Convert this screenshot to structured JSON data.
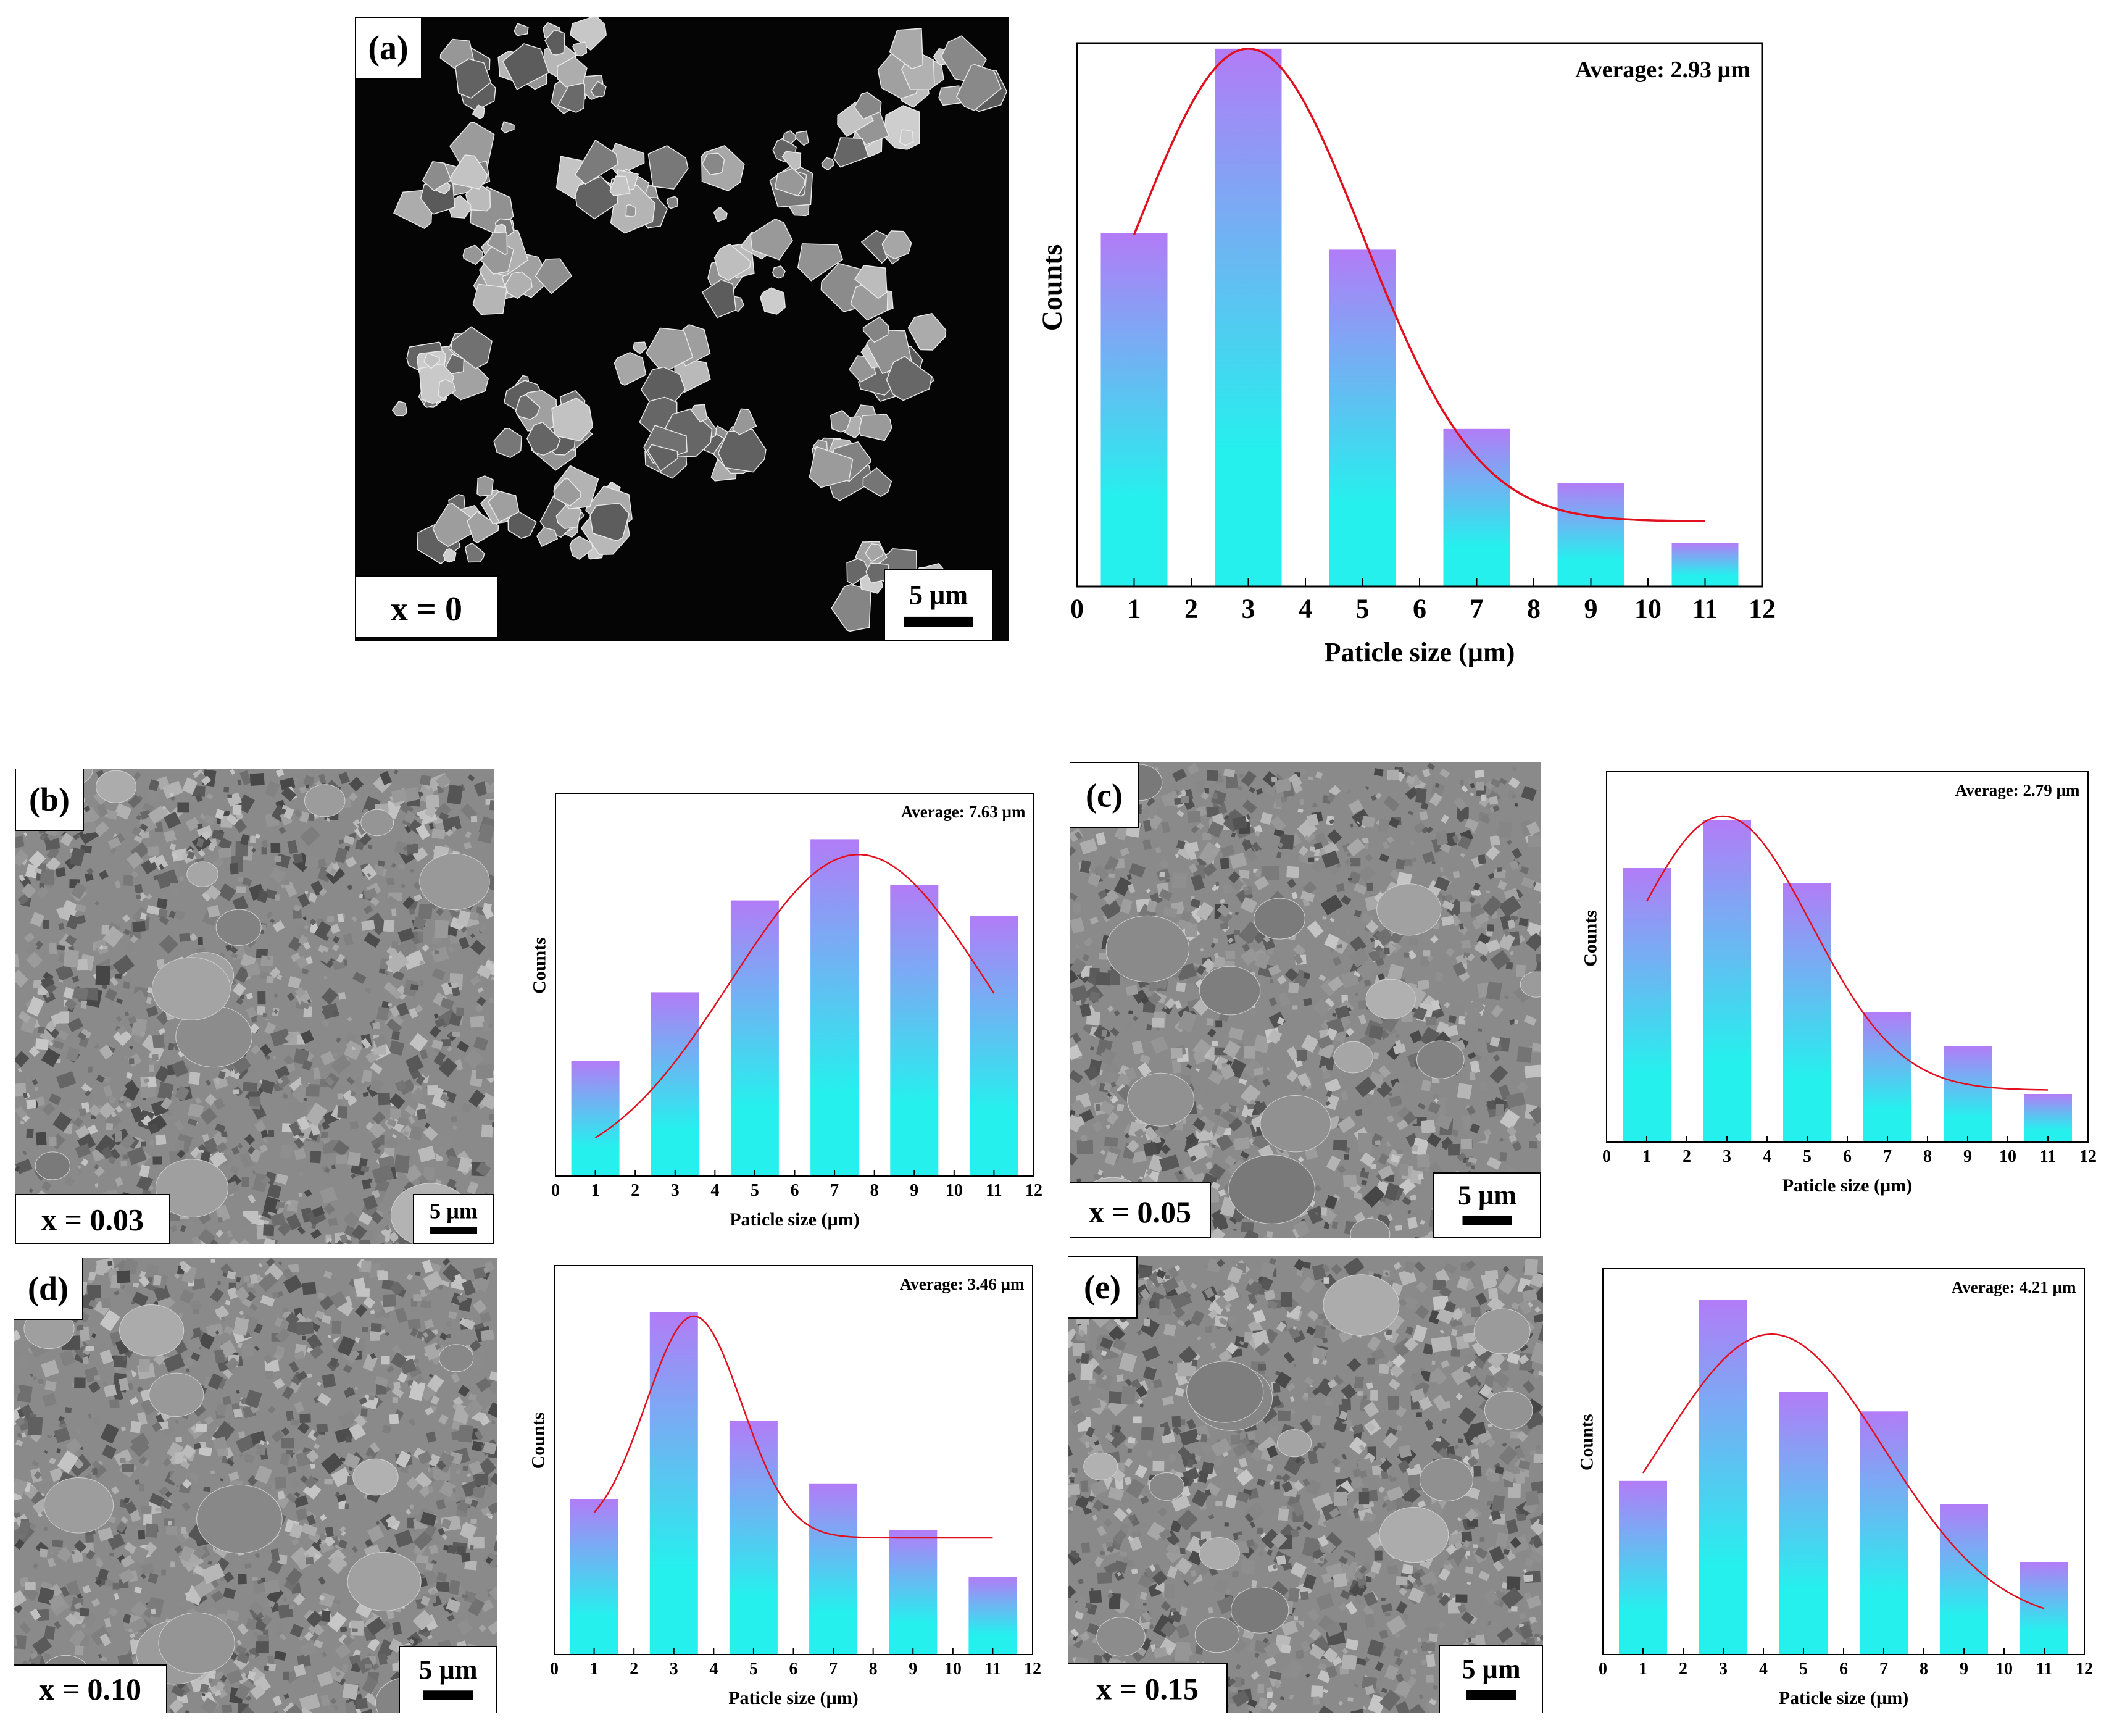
{
  "panels": [
    {
      "label": "(a)",
      "composition": "x = 0",
      "scale_bar": "5 µm",
      "image_style": "dark",
      "chart_data": {
        "type": "bar",
        "categories": [
          "1",
          "3",
          "5",
          "7",
          "9",
          "11"
        ],
        "values": [
          0.65,
          0.99,
          0.62,
          0.29,
          0.19,
          0.08
        ],
        "average_text": "Average: 2.93 µm",
        "xlabel": "Paticle size (µm)",
        "ylabel": "Counts",
        "xticks": [
          "0",
          "1",
          "2",
          "3",
          "4",
          "5",
          "6",
          "7",
          "8",
          "9",
          "10",
          "11",
          "12"
        ],
        "xlim": [
          0,
          12
        ],
        "ylim": [
          0,
          1
        ],
        "fit_curve": {
          "shape": "gaussian",
          "peak_x": 3.0,
          "peak_y": 0.99,
          "sigma": 2.0,
          "baseline": 0.12,
          "x_start": 1.0,
          "x_end": 11.0
        },
        "bar_colors": [
          "#b27cf7",
          "#25f0ee"
        ],
        "curve_color": "#e0101f"
      }
    },
    {
      "label": "(b)",
      "composition": "x = 0.03",
      "scale_bar": "5 µm",
      "image_style": "gray",
      "chart_data": {
        "type": "bar",
        "categories": [
          "1",
          "3",
          "5",
          "7",
          "9",
          "11"
        ],
        "values": [
          0.3,
          0.48,
          0.72,
          0.88,
          0.76,
          0.68
        ],
        "average_text": "Average: 7.63 µm",
        "xlabel": "Paticle size (µm)",
        "ylabel": "Counts",
        "xticks": [
          "0",
          "1",
          "2",
          "3",
          "4",
          "5",
          "6",
          "7",
          "8",
          "9",
          "10",
          "11",
          "12"
        ],
        "xlim": [
          0,
          12
        ],
        "ylim": [
          0,
          1
        ],
        "fit_curve": {
          "shape": "gaussian",
          "peak_x": 7.6,
          "peak_y": 0.84,
          "sigma": 3.2,
          "baseline": 0.0,
          "x_start": 1.0,
          "x_end": 11.0
        },
        "bar_colors": [
          "#b27cf7",
          "#25f0ee"
        ],
        "curve_color": "#e0101f"
      }
    },
    {
      "label": "(c)",
      "composition": "x = 0.05",
      "scale_bar": "5 µm",
      "image_style": "gray",
      "chart_data": {
        "type": "bar",
        "categories": [
          "1",
          "3",
          "5",
          "7",
          "9",
          "11"
        ],
        "values": [
          0.74,
          0.87,
          0.7,
          0.35,
          0.26,
          0.13
        ],
        "average_text": "Average: 2.79 µm",
        "xlabel": "Paticle size (µm)",
        "ylabel": "Counts",
        "xticks": [
          "0",
          "1",
          "2",
          "3",
          "4",
          "5",
          "6",
          "7",
          "8",
          "9",
          "10",
          "11",
          "12"
        ],
        "xlim": [
          0,
          12
        ],
        "ylim": [
          0,
          1
        ],
        "fit_curve": {
          "shape": "gaussian",
          "peak_x": 2.9,
          "peak_y": 0.88,
          "sigma": 2.2,
          "baseline": 0.14,
          "x_start": 1.0,
          "x_end": 11.0
        },
        "bar_colors": [
          "#b27cf7",
          "#25f0ee"
        ],
        "curve_color": "#e0101f"
      }
    },
    {
      "label": "(d)",
      "composition": "x = 0.10",
      "scale_bar": "5 µm",
      "image_style": "gray",
      "chart_data": {
        "type": "bar",
        "categories": [
          "1",
          "3",
          "5",
          "7",
          "9",
          "11"
        ],
        "values": [
          0.4,
          0.88,
          0.6,
          0.44,
          0.32,
          0.2
        ],
        "average_text": "Average: 3.46 µm",
        "xlabel": "Paticle size (µm)",
        "ylabel": "Counts",
        "xticks": [
          "0",
          "1",
          "2",
          "3",
          "4",
          "5",
          "6",
          "7",
          "8",
          "9",
          "10",
          "11",
          "12"
        ],
        "xlim": [
          0,
          12
        ],
        "ylim": [
          0,
          1
        ],
        "fit_curve": {
          "shape": "gaussian",
          "peak_x": 3.5,
          "peak_y": 0.87,
          "sigma": 1.2,
          "baseline": 0.3,
          "x_start": 1.0,
          "x_end": 11.0
        },
        "bar_colors": [
          "#b27cf7",
          "#25f0ee"
        ],
        "curve_color": "#e0101f"
      }
    },
    {
      "label": "(e)",
      "composition": "x = 0.15",
      "scale_bar": "5 µm",
      "image_style": "gray",
      "chart_data": {
        "type": "bar",
        "categories": [
          "1",
          "3",
          "5",
          "7",
          "9",
          "11"
        ],
        "values": [
          0.45,
          0.92,
          0.68,
          0.63,
          0.39,
          0.24
        ],
        "average_text": "Average: 4.21 µm",
        "xlabel": "Paticle size (µm)",
        "ylabel": "Counts",
        "xticks": [
          "0",
          "1",
          "2",
          "3",
          "4",
          "5",
          "6",
          "7",
          "8",
          "9",
          "10",
          "11",
          "12"
        ],
        "xlim": [
          0,
          12
        ],
        "ylim": [
          0,
          1
        ],
        "fit_curve": {
          "shape": "gaussian",
          "peak_x": 4.2,
          "peak_y": 0.83,
          "sigma": 2.8,
          "baseline": 0.08,
          "x_start": 1.0,
          "x_end": 11.0
        },
        "bar_colors": [
          "#b27cf7",
          "#25f0ee"
        ],
        "curve_color": "#e0101f"
      }
    }
  ]
}
